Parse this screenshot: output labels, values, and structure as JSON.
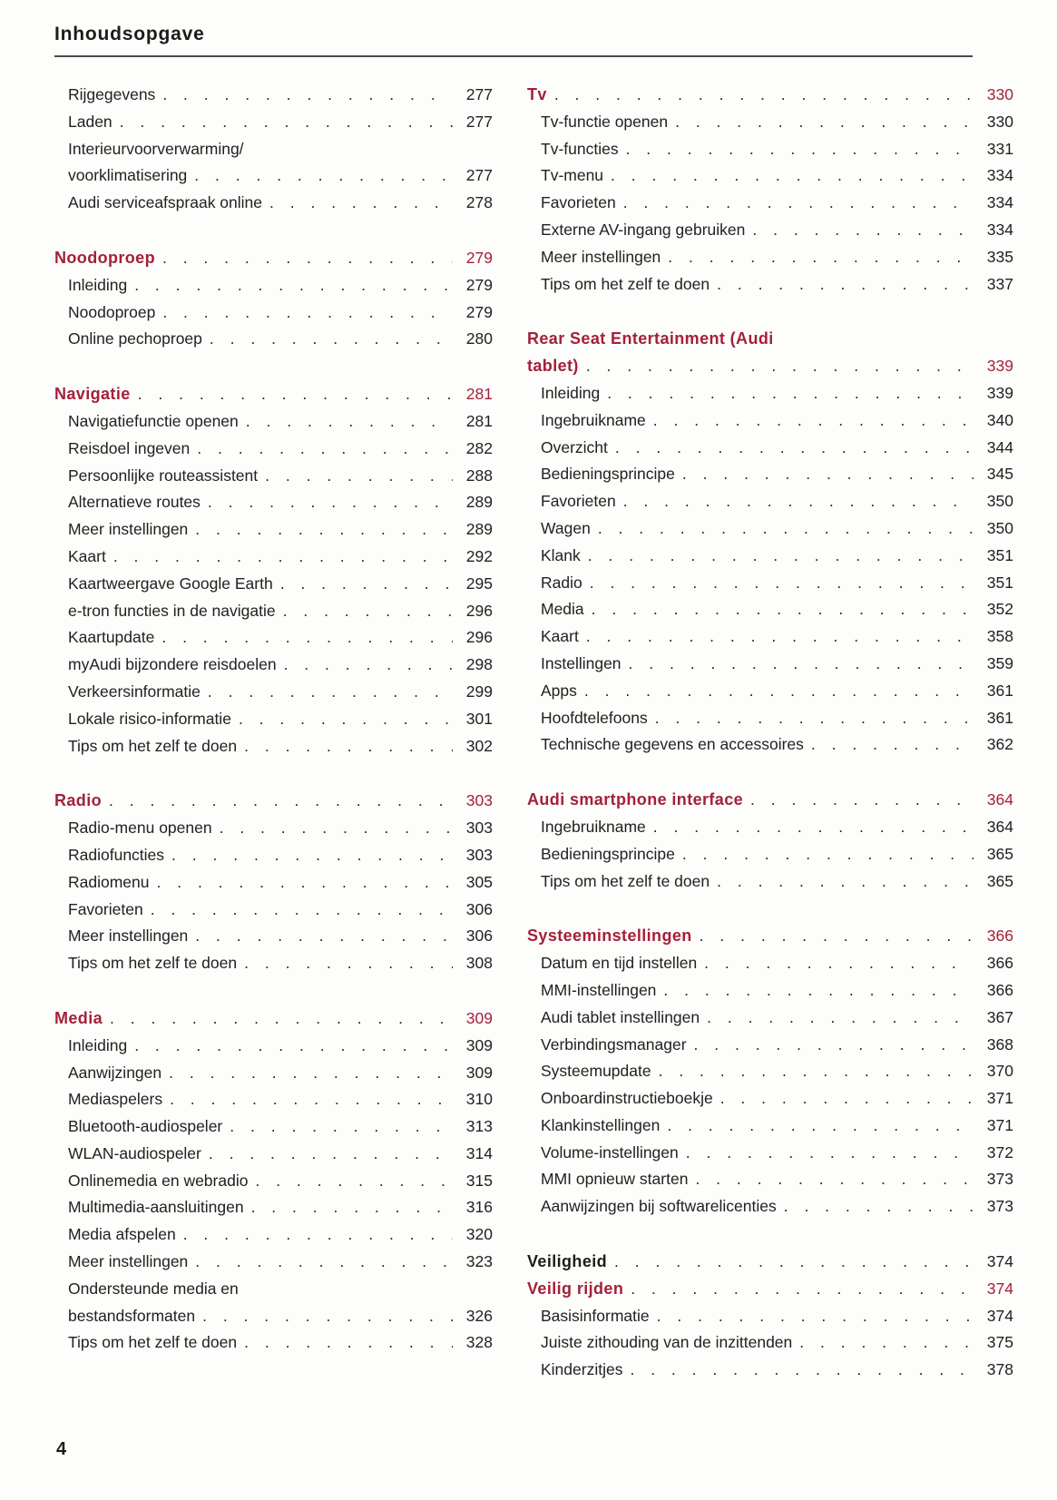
{
  "page": {
    "title": "Inhoudsopgave",
    "page_number": "4",
    "accent_color": "#a32139",
    "text_color": "#222120"
  },
  "columns": {
    "left": [
      {
        "t": "i",
        "label": "Rijgegevens",
        "page": "277"
      },
      {
        "t": "i",
        "label": "Laden",
        "page": "277"
      },
      {
        "t": "iw",
        "label": "Interieurvoorverwarming/",
        "page": null
      },
      {
        "t": "i",
        "label": "voorklimatisering",
        "page": "277"
      },
      {
        "t": "i",
        "label": "Audi serviceafspraak online",
        "page": "278"
      },
      {
        "t": "sp"
      },
      {
        "t": "h",
        "label": "Noodoproep",
        "page": "279"
      },
      {
        "t": "i",
        "label": "Inleiding",
        "page": "279"
      },
      {
        "t": "i",
        "label": "Noodoproep",
        "page": "279"
      },
      {
        "t": "i",
        "label": "Online pechoproep",
        "page": "280"
      },
      {
        "t": "sp"
      },
      {
        "t": "h",
        "label": "Navigatie",
        "page": "281"
      },
      {
        "t": "i",
        "label": "Navigatiefunctie openen",
        "page": "281"
      },
      {
        "t": "i",
        "label": "Reisdoel ingeven",
        "page": "282"
      },
      {
        "t": "i",
        "label": "Persoonlijke routeassistent",
        "page": "288"
      },
      {
        "t": "i",
        "label": "Alternatieve routes",
        "page": "289"
      },
      {
        "t": "i",
        "label": "Meer instellingen",
        "page": "289"
      },
      {
        "t": "i",
        "label": "Kaart",
        "page": "292"
      },
      {
        "t": "i",
        "label": "Kaartweergave Google Earth",
        "page": "295"
      },
      {
        "t": "i",
        "label": "e-tron functies in de navigatie",
        "page": "296"
      },
      {
        "t": "i",
        "label": "Kaartupdate",
        "page": "296"
      },
      {
        "t": "i",
        "label": "myAudi bijzondere reisdoelen",
        "page": "298"
      },
      {
        "t": "i",
        "label": "Verkeersinformatie",
        "page": "299"
      },
      {
        "t": "i",
        "label": "Lokale risico-informatie",
        "page": "301"
      },
      {
        "t": "i",
        "label": "Tips om het zelf te doen",
        "page": "302"
      },
      {
        "t": "sp"
      },
      {
        "t": "h",
        "label": "Radio",
        "page": "303"
      },
      {
        "t": "i",
        "label": "Radio-menu openen",
        "page": "303"
      },
      {
        "t": "i",
        "label": "Radiofuncties",
        "page": "303"
      },
      {
        "t": "i",
        "label": "Radiomenu",
        "page": "305"
      },
      {
        "t": "i",
        "label": "Favorieten",
        "page": "306"
      },
      {
        "t": "i",
        "label": "Meer instellingen",
        "page": "306"
      },
      {
        "t": "i",
        "label": "Tips om het zelf te doen",
        "page": "308"
      },
      {
        "t": "sp"
      },
      {
        "t": "h",
        "label": "Media",
        "page": "309"
      },
      {
        "t": "i",
        "label": "Inleiding",
        "page": "309"
      },
      {
        "t": "i",
        "label": "Aanwijzingen",
        "page": "309"
      },
      {
        "t": "i",
        "label": "Mediaspelers",
        "page": "310"
      },
      {
        "t": "i",
        "label": "Bluetooth-audiospeler",
        "page": "313"
      },
      {
        "t": "i",
        "label": "WLAN-audiospeler",
        "page": "314"
      },
      {
        "t": "i",
        "label": "Onlinemedia en webradio",
        "page": "315"
      },
      {
        "t": "i",
        "label": "Multimedia-aansluitingen",
        "page": "316"
      },
      {
        "t": "i",
        "label": "Media afspelen",
        "page": "320"
      },
      {
        "t": "i",
        "label": "Meer instellingen",
        "page": "323"
      },
      {
        "t": "iw",
        "label": "Ondersteunde media en",
        "page": null
      },
      {
        "t": "i",
        "label": "bestandsformaten",
        "page": "326"
      },
      {
        "t": "i",
        "label": "Tips om het zelf te doen",
        "page": "328"
      }
    ],
    "right": [
      {
        "t": "h",
        "label": "Tv",
        "page": "330"
      },
      {
        "t": "i",
        "label": "Tv-functie openen",
        "page": "330"
      },
      {
        "t": "i",
        "label": "Tv-functies",
        "page": "331"
      },
      {
        "t": "i",
        "label": "Tv-menu",
        "page": "334"
      },
      {
        "t": "i",
        "label": "Favorieten",
        "page": "334"
      },
      {
        "t": "i",
        "label": "Externe AV-ingang gebruiken",
        "page": "334"
      },
      {
        "t": "i",
        "label": "Meer instellingen",
        "page": "335"
      },
      {
        "t": "i",
        "label": "Tips om het zelf te doen",
        "page": "337"
      },
      {
        "t": "sp"
      },
      {
        "t": "hw",
        "label": "Rear Seat Entertainment (Audi",
        "page": null
      },
      {
        "t": "h",
        "label": "tablet)",
        "page": "339"
      },
      {
        "t": "i",
        "label": "Inleiding",
        "page": "339"
      },
      {
        "t": "i",
        "label": "Ingebruikname",
        "page": "340"
      },
      {
        "t": "i",
        "label": "Overzicht",
        "page": "344"
      },
      {
        "t": "i",
        "label": "Bedieningsprincipe",
        "page": "345"
      },
      {
        "t": "i",
        "label": "Favorieten",
        "page": "350"
      },
      {
        "t": "i",
        "label": "Wagen",
        "page": "350"
      },
      {
        "t": "i",
        "label": "Klank",
        "page": "351"
      },
      {
        "t": "i",
        "label": "Radio",
        "page": "351"
      },
      {
        "t": "i",
        "label": "Media",
        "page": "352"
      },
      {
        "t": "i",
        "label": "Kaart",
        "page": "358"
      },
      {
        "t": "i",
        "label": "Instellingen",
        "page": "359"
      },
      {
        "t": "i",
        "label": "Apps",
        "page": "361"
      },
      {
        "t": "i",
        "label": "Hoofdtelefoons",
        "page": "361"
      },
      {
        "t": "i",
        "label": "Technische gegevens en accessoires",
        "page": "362"
      },
      {
        "t": "sp"
      },
      {
        "t": "h",
        "label": "Audi smartphone interface",
        "page": "364"
      },
      {
        "t": "i",
        "label": "Ingebruikname",
        "page": "364"
      },
      {
        "t": "i",
        "label": "Bedieningsprincipe",
        "page": "365"
      },
      {
        "t": "i",
        "label": "Tips om het zelf te doen",
        "page": "365"
      },
      {
        "t": "sp"
      },
      {
        "t": "h",
        "label": "Systeeminstellingen",
        "page": "366"
      },
      {
        "t": "i",
        "label": "Datum en tijd instellen",
        "page": "366"
      },
      {
        "t": "i",
        "label": "MMI-instellingen",
        "page": "366"
      },
      {
        "t": "i",
        "label": "Audi tablet instellingen",
        "page": "367"
      },
      {
        "t": "i",
        "label": "Verbindingsmanager",
        "page": "368"
      },
      {
        "t": "i",
        "label": "Systeemupdate",
        "page": "370"
      },
      {
        "t": "i",
        "label": "Onboardinstructieboekje",
        "page": "371"
      },
      {
        "t": "i",
        "label": "Klankinstellingen",
        "page": "371"
      },
      {
        "t": "i",
        "label": "Volume-instellingen",
        "page": "372"
      },
      {
        "t": "i",
        "label": "MMI opnieuw starten",
        "page": "373"
      },
      {
        "t": "i",
        "label": "Aanwijzingen bij softwarelicenties",
        "page": "373"
      },
      {
        "t": "sp"
      },
      {
        "t": "hb",
        "label": "Veiligheid",
        "page": "374"
      },
      {
        "t": "h",
        "label": "Veilig rijden",
        "page": "374"
      },
      {
        "t": "i",
        "label": "Basisinformatie",
        "page": "374"
      },
      {
        "t": "i",
        "label": "Juiste zithouding van de inzittenden",
        "page": "375"
      },
      {
        "t": "i",
        "label": "Kinderzitjes",
        "page": "378"
      }
    ]
  }
}
